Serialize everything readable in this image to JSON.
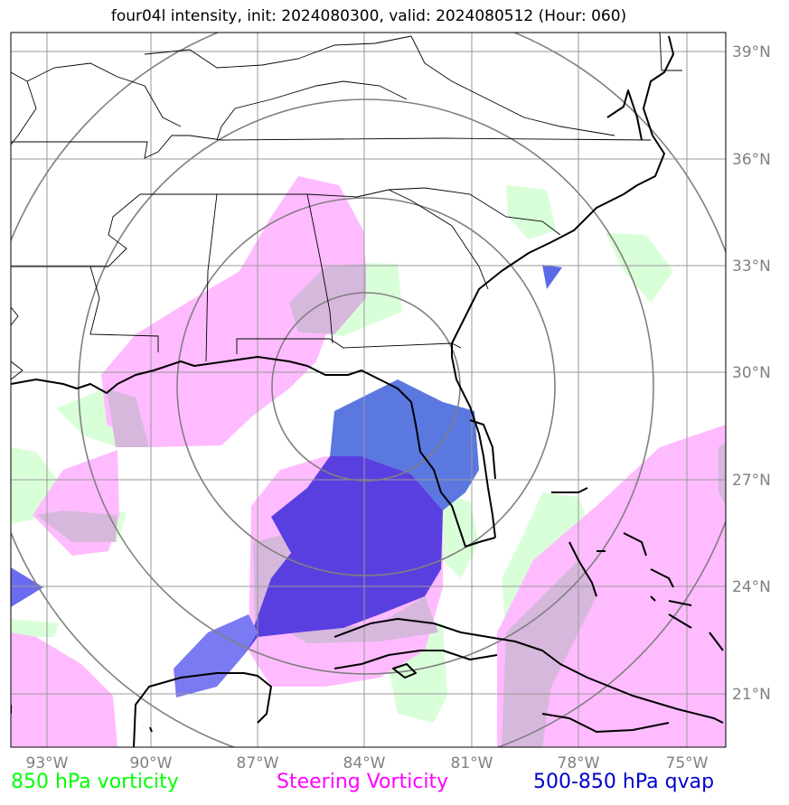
{
  "title": "four04l intensity, init: 2024080300, valid: 2024080512 (Hour: 060)",
  "longitude_labels": [
    "93°W",
    "90°W",
    "87°W",
    "84°W",
    "81°W",
    "78°W",
    "75°W"
  ],
  "latitude_labels": [
    "39°N",
    "36°N",
    "33°N",
    "30°N",
    "27°N",
    "24°N",
    "21°N"
  ],
  "legend": {
    "vorticity_850": {
      "label": "850 hPa vorticity",
      "color": "#00ff00"
    },
    "steering": {
      "label": "Steering Vorticity",
      "color": "#ff00ff"
    },
    "qvap": {
      "label": "500-850 hPa qvap",
      "color": "#0000cc"
    }
  },
  "colors": {
    "graticule": "#999999",
    "range_rings": "#808080",
    "coastline": "#000000",
    "vorticity_850_fill": "#ccffcc",
    "steering_fill": "#ffbbff",
    "qvap_fill": "#4f5ae0",
    "qvap_strong_fill": "#5a2fe0"
  },
  "icons": [
    "range-ring",
    "coastline",
    "contour-fill"
  ]
}
